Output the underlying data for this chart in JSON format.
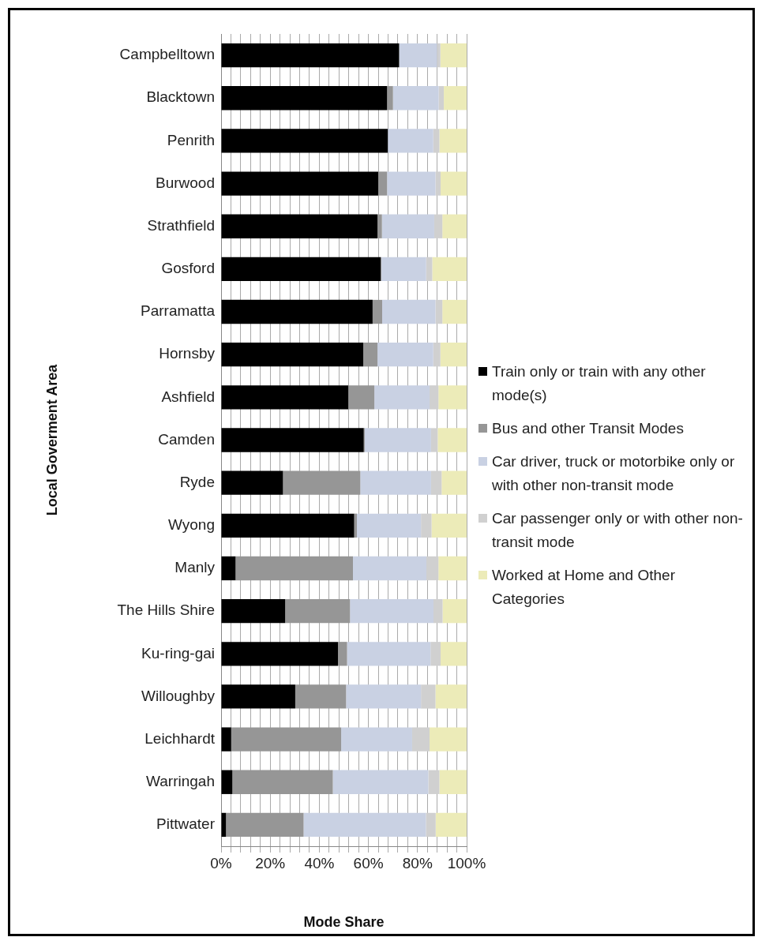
{
  "chart_data": {
    "type": "bar",
    "orientation": "horizontal",
    "stacked": true,
    "xlabel": "Mode Share",
    "ylabel": "Local Goverment Area",
    "categories": [
      "Campbelltown",
      "Blacktown",
      "Penrith",
      "Burwood",
      "Strathfield",
      "Gosford",
      "Parramatta",
      "Hornsby",
      "Ashfield",
      "Camden",
      "Ryde",
      "Wyong",
      "Manly",
      "The Hills Shire",
      "Ku-ring-gai",
      "Willoughby",
      "Leichhardt",
      "Warringah",
      "Pittwater"
    ],
    "series": [
      {
        "name": "Train only or train with any other mode(s)",
        "color": "#000000",
        "values": [
          72.5,
          67.6,
          67.9,
          64.0,
          63.7,
          65.0,
          61.7,
          57.9,
          51.8,
          58.1,
          25.2,
          54.2,
          5.9,
          26.1,
          47.6,
          30.2,
          4.1,
          4.6,
          2.0
        ]
      },
      {
        "name": "Bus and other Transit Modes",
        "color": "#969696",
        "values": [
          0,
          2.4,
          0,
          3.6,
          1.8,
          0.3,
          3.9,
          5.8,
          10.6,
          0.4,
          31.5,
          1.1,
          47.8,
          26.4,
          3.7,
          20.7,
          44.8,
          40.9,
          31.6
        ]
      },
      {
        "name": "Car driver, truck or motorbike only or with other non-transit mode",
        "color": "#c9d1e3",
        "values": [
          15.4,
          18.6,
          18.5,
          19.7,
          21.3,
          18.2,
          21.7,
          22.7,
          22.5,
          27.0,
          28.8,
          26.1,
          29.9,
          34.0,
          34.0,
          30.5,
          28.9,
          38.9,
          49.8
        ]
      },
      {
        "name": "Car passenger only or with other non-transit mode",
        "color": "#d0d0d0",
        "values": [
          1.4,
          2.1,
          2.5,
          2.1,
          3.3,
          2.5,
          2.8,
          2.9,
          3.6,
          2.7,
          4.3,
          4.3,
          4.9,
          3.7,
          4.1,
          5.9,
          7.1,
          4.5,
          4.0
        ]
      },
      {
        "name": "Worked at Home and Other Categories",
        "color": "#ecebb8",
        "values": [
          10.7,
          9.3,
          11.1,
          10.6,
          9.9,
          14.0,
          9.9,
          10.7,
          11.5,
          11.8,
          10.2,
          14.3,
          11.5,
          9.8,
          10.6,
          12.7,
          15.1,
          11.1,
          12.6
        ]
      }
    ],
    "xlim": [
      0,
      100
    ],
    "xticks": [
      {
        "value": 0,
        "label": "0%"
      },
      {
        "value": 4,
        "label": null
      },
      {
        "value": 8,
        "label": null
      },
      {
        "value": 12,
        "label": null
      },
      {
        "value": 16,
        "label": null
      },
      {
        "value": 20,
        "label": "20%"
      },
      {
        "value": 24,
        "label": null
      },
      {
        "value": 28,
        "label": null
      },
      {
        "value": 32,
        "label": null
      },
      {
        "value": 36,
        "label": null
      },
      {
        "value": 40,
        "label": "40%"
      },
      {
        "value": 44,
        "label": null
      },
      {
        "value": 48,
        "label": null
      },
      {
        "value": 52,
        "label": null
      },
      {
        "value": 56,
        "label": null
      },
      {
        "value": 60,
        "label": "60%"
      },
      {
        "value": 64,
        "label": null
      },
      {
        "value": 68,
        "label": null
      },
      {
        "value": 72,
        "label": null
      },
      {
        "value": 76,
        "label": null
      },
      {
        "value": 80,
        "label": "80%"
      },
      {
        "value": 84,
        "label": null
      },
      {
        "value": 88,
        "label": null
      },
      {
        "value": 92,
        "label": null
      },
      {
        "value": 96,
        "label": null
      },
      {
        "value": 100,
        "label": "100%"
      }
    ],
    "grid": "x",
    "legend": "right"
  }
}
